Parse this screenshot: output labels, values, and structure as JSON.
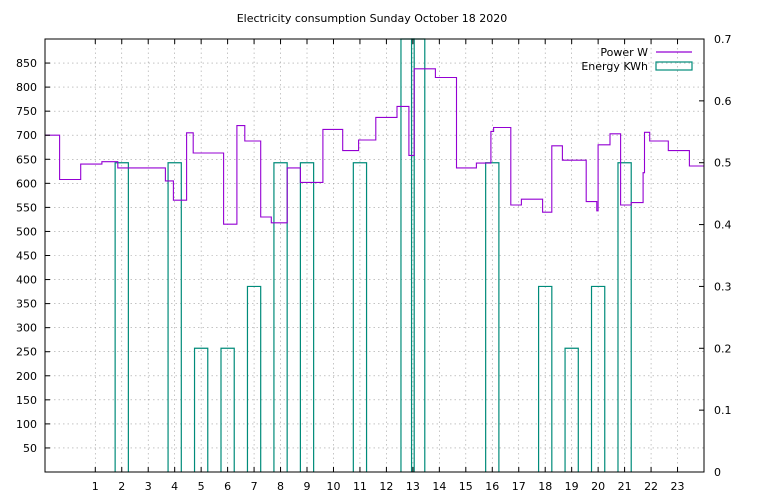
{
  "chart_data": {
    "type": "line",
    "title": "Electricity consumption Sunday October 18 2020",
    "grid": true,
    "legend_position": "top-right",
    "x": {
      "ticks": [
        1,
        2,
        3,
        4,
        5,
        6,
        7,
        8,
        9,
        10,
        11,
        12,
        13,
        14,
        15,
        16,
        17,
        18,
        19,
        20,
        21,
        22,
        23
      ],
      "range": [
        -0.9,
        24.0
      ]
    },
    "y_left": {
      "ticks": [
        50,
        100,
        150,
        200,
        250,
        300,
        350,
        400,
        450,
        500,
        550,
        600,
        650,
        700,
        750,
        800,
        850
      ],
      "range": [
        0,
        900
      ]
    },
    "y_right": {
      "ticks": [
        "0",
        "0.1",
        "0.2",
        "0.3",
        "0.4",
        "0.5",
        "0.6",
        "0.7"
      ],
      "range": [
        0,
        0.7
      ]
    },
    "series": [
      {
        "name": "Power W",
        "color": "#9400d3",
        "axis": "left",
        "style": "steps",
        "x": [
          -0.9,
          -0.35,
          -0.35,
          0.45,
          0.45,
          1.25,
          1.25,
          1.85,
          1.85,
          3.65,
          3.65,
          3.95,
          3.95,
          4.45,
          4.45,
          4.7,
          4.7,
          5.85,
          5.85,
          6.35,
          6.35,
          6.65,
          6.65,
          7.25,
          7.25,
          7.65,
          7.65,
          8.25,
          8.25,
          8.75,
          8.75,
          9.6,
          9.6,
          10.35,
          10.35,
          10.95,
          10.95,
          11.6,
          11.6,
          12.4,
          12.4,
          12.85,
          12.85,
          13.05,
          13.05,
          13.85,
          13.85,
          14.65,
          14.65,
          15.4,
          15.4,
          15.95,
          15.95,
          16.05,
          16.05,
          16.7,
          16.7,
          17.1,
          17.1,
          17.9,
          17.9,
          18.25,
          18.25,
          18.65,
          18.65,
          19.55,
          19.55,
          19.95,
          19.95,
          20.0,
          20.0,
          20.45,
          20.45,
          20.85,
          20.85,
          21.25,
          21.25,
          21.7,
          21.7,
          21.75,
          21.75,
          21.95,
          21.95,
          22.65,
          22.65,
          23.45,
          23.45,
          24.0
        ],
        "y": [
          700,
          700,
          608,
          608,
          640,
          640,
          645,
          645,
          632,
          632,
          605,
          605,
          565,
          565,
          705,
          705,
          663,
          663,
          515,
          515,
          720,
          720,
          688,
          688,
          530,
          530,
          518,
          518,
          632,
          632,
          602,
          602,
          712,
          712,
          668,
          668,
          690,
          690,
          737,
          737,
          760,
          760,
          658,
          658,
          838,
          838,
          820,
          820,
          632,
          632,
          642,
          642,
          708,
          708,
          716,
          716,
          555,
          555,
          567,
          567,
          540,
          540,
          678,
          678,
          648,
          648,
          562,
          562,
          543,
          543,
          680,
          680,
          703,
          703,
          555,
          555,
          560,
          560,
          622,
          622,
          706,
          706,
          688,
          688,
          668,
          668,
          636,
          636
        ]
      },
      {
        "name": "Energy KWh",
        "color": "#008b7a",
        "axis": "right",
        "style": "impulse-boxes",
        "bars": [
          {
            "x": 2,
            "value": 0.5
          },
          {
            "x": 4,
            "value": 0.5
          },
          {
            "x": 5,
            "value": 0.2
          },
          {
            "x": 6,
            "value": 0.2
          },
          {
            "x": 7,
            "value": 0.3
          },
          {
            "x": 8,
            "value": 0.5
          },
          {
            "x": 9,
            "value": 0.5
          },
          {
            "x": 11,
            "value": 0.5
          },
          {
            "x": 12.8,
            "value": 0.7
          },
          {
            "x": 13.2,
            "value": 0.7
          },
          {
            "x": 16,
            "value": 0.5
          },
          {
            "x": 18,
            "value": 0.3
          },
          {
            "x": 19,
            "value": 0.2
          },
          {
            "x": 20,
            "value": 0.3
          },
          {
            "x": 21,
            "value": 0.5
          }
        ]
      }
    ]
  }
}
